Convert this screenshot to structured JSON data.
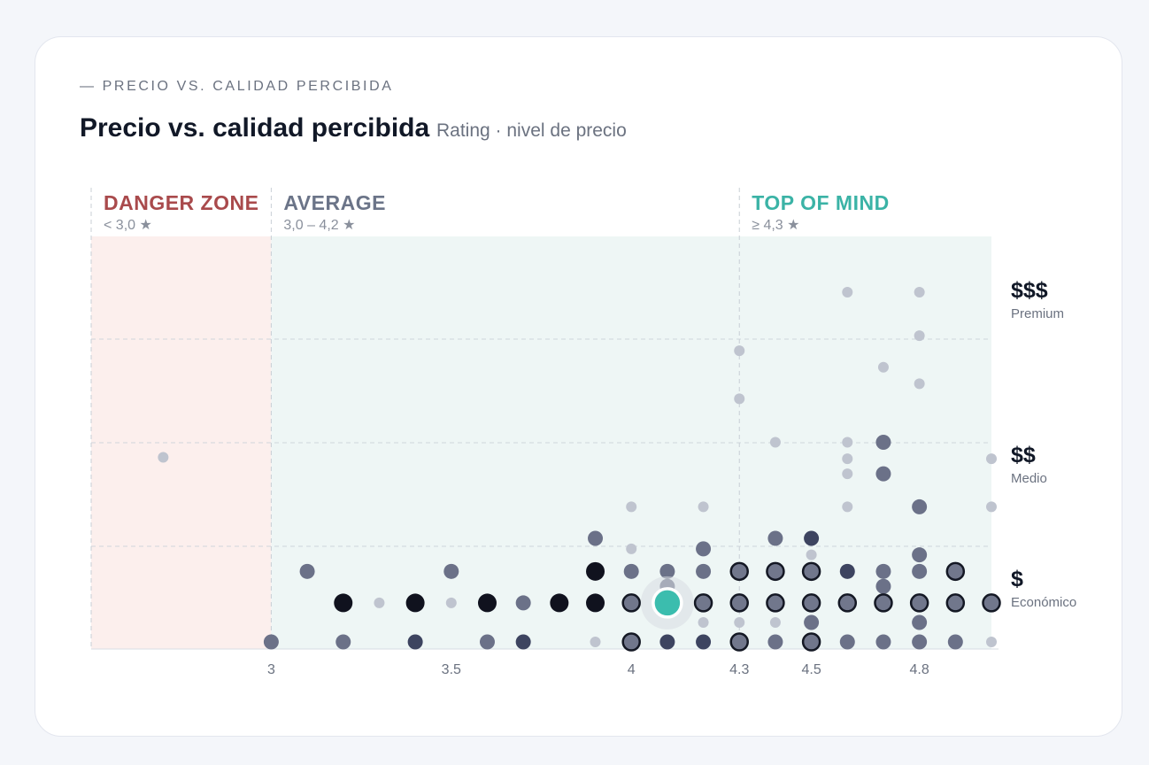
{
  "header": {
    "eyebrow": "— PRECIO VS. CALIDAD PERCIBIDA",
    "title": "Precio vs. calidad percibida",
    "subtitle": "Rating · nivel de precio"
  },
  "colors": {
    "danger": "#a94a4c",
    "average": "#6b7488",
    "top": "#3bb3a6",
    "highlight": "#3bbdae",
    "danger_bg": "#fcefed",
    "zone_bg": "#eef6f5"
  },
  "chart_data": {
    "type": "scatter",
    "title": "Precio vs. calidad percibida",
    "subtitle": "Rating · nivel de precio",
    "xlim": [
      2.5,
      5.0
    ],
    "x_ticks": [
      3,
      3.5,
      4,
      4.3,
      4.5,
      4.8
    ],
    "zones": [
      {
        "name": "DANGER ZONE",
        "range_label": "< 3,0 ★",
        "from": 2.5,
        "to": 3.0
      },
      {
        "name": "AVERAGE",
        "range_label": "3,0 – 4,2 ★",
        "from": 3.0,
        "to": 4.3
      },
      {
        "name": "TOP OF MIND",
        "range_label": "≥ 4,3 ★",
        "from": 4.3,
        "to": 5.0
      }
    ],
    "price_levels": [
      {
        "symbol": "$$$",
        "label": "Premium",
        "level": 3
      },
      {
        "symbol": "$$",
        "label": "Medio",
        "level": 2
      },
      {
        "symbol": "$",
        "label": "Económico",
        "level": 1
      }
    ],
    "ylim": [
      0.5,
      3.2
    ],
    "points": [
      {
        "x": 2.7,
        "y": 1.9,
        "t": "s"
      },
      {
        "x": 3.0,
        "y": 0.67,
        "t": "m"
      },
      {
        "x": 3.1,
        "y": 1.14,
        "t": "m"
      },
      {
        "x": 3.2,
        "y": 0.93,
        "t": "l"
      },
      {
        "x": 3.2,
        "y": 0.67,
        "t": "m"
      },
      {
        "x": 3.3,
        "y": 0.93,
        "t": "s"
      },
      {
        "x": 3.4,
        "y": 0.93,
        "t": "l"
      },
      {
        "x": 3.4,
        "y": 0.67,
        "t": "d"
      },
      {
        "x": 3.5,
        "y": 1.14,
        "t": "m"
      },
      {
        "x": 3.5,
        "y": 0.93,
        "t": "s"
      },
      {
        "x": 3.6,
        "y": 0.93,
        "t": "l"
      },
      {
        "x": 3.6,
        "y": 0.67,
        "t": "m"
      },
      {
        "x": 3.7,
        "y": 0.93,
        "t": "m"
      },
      {
        "x": 3.7,
        "y": 0.67,
        "t": "d"
      },
      {
        "x": 3.8,
        "y": 0.93,
        "t": "l"
      },
      {
        "x": 3.9,
        "y": 1.36,
        "t": "m"
      },
      {
        "x": 3.9,
        "y": 1.14,
        "t": "l"
      },
      {
        "x": 3.9,
        "y": 0.93,
        "t": "l"
      },
      {
        "x": 3.9,
        "y": 0.67,
        "t": "s"
      },
      {
        "x": 4.0,
        "y": 1.57,
        "t": "s"
      },
      {
        "x": 4.0,
        "y": 1.29,
        "t": "s"
      },
      {
        "x": 4.0,
        "y": 1.14,
        "t": "m"
      },
      {
        "x": 4.0,
        "y": 0.93,
        "t": "r"
      },
      {
        "x": 4.0,
        "y": 0.67,
        "t": "r"
      },
      {
        "x": 4.1,
        "y": 1.14,
        "t": "m"
      },
      {
        "x": 4.1,
        "y": 1.04,
        "t": "m"
      },
      {
        "x": 4.1,
        "y": 0.67,
        "t": "d"
      },
      {
        "x": 4.2,
        "y": 1.57,
        "t": "s"
      },
      {
        "x": 4.2,
        "y": 1.29,
        "t": "m"
      },
      {
        "x": 4.2,
        "y": 1.14,
        "t": "m"
      },
      {
        "x": 4.2,
        "y": 0.93,
        "t": "r"
      },
      {
        "x": 4.2,
        "y": 0.8,
        "t": "s"
      },
      {
        "x": 4.2,
        "y": 0.67,
        "t": "d"
      },
      {
        "x": 4.3,
        "y": 2.61,
        "t": "s"
      },
      {
        "x": 4.3,
        "y": 2.29,
        "t": "s"
      },
      {
        "x": 4.3,
        "y": 1.14,
        "t": "r"
      },
      {
        "x": 4.3,
        "y": 0.93,
        "t": "r"
      },
      {
        "x": 4.3,
        "y": 0.8,
        "t": "s"
      },
      {
        "x": 4.3,
        "y": 0.67,
        "t": "r"
      },
      {
        "x": 4.4,
        "y": 2.0,
        "t": "s"
      },
      {
        "x": 4.4,
        "y": 1.36,
        "t": "m"
      },
      {
        "x": 4.4,
        "y": 1.14,
        "t": "r"
      },
      {
        "x": 4.4,
        "y": 0.93,
        "t": "r"
      },
      {
        "x": 4.4,
        "y": 0.8,
        "t": "s"
      },
      {
        "x": 4.4,
        "y": 0.67,
        "t": "m"
      },
      {
        "x": 4.5,
        "y": 1.36,
        "t": "d"
      },
      {
        "x": 4.5,
        "y": 1.25,
        "t": "s"
      },
      {
        "x": 4.5,
        "y": 1.14,
        "t": "r"
      },
      {
        "x": 4.5,
        "y": 0.93,
        "t": "r"
      },
      {
        "x": 4.5,
        "y": 0.8,
        "t": "m"
      },
      {
        "x": 4.5,
        "y": 0.67,
        "t": "r"
      },
      {
        "x": 4.6,
        "y": 3.0,
        "t": "s"
      },
      {
        "x": 4.6,
        "y": 2.0,
        "t": "s"
      },
      {
        "x": 4.6,
        "y": 1.89,
        "t": "s"
      },
      {
        "x": 4.6,
        "y": 1.79,
        "t": "s"
      },
      {
        "x": 4.6,
        "y": 1.57,
        "t": "s"
      },
      {
        "x": 4.6,
        "y": 1.14,
        "t": "d"
      },
      {
        "x": 4.6,
        "y": 0.93,
        "t": "r"
      },
      {
        "x": 4.6,
        "y": 0.67,
        "t": "m"
      },
      {
        "x": 4.7,
        "y": 2.5,
        "t": "s"
      },
      {
        "x": 4.7,
        "y": 2.0,
        "t": "m"
      },
      {
        "x": 4.7,
        "y": 1.79,
        "t": "m"
      },
      {
        "x": 4.7,
        "y": 1.14,
        "t": "m"
      },
      {
        "x": 4.7,
        "y": 1.04,
        "t": "m"
      },
      {
        "x": 4.7,
        "y": 0.93,
        "t": "r"
      },
      {
        "x": 4.7,
        "y": 0.67,
        "t": "m"
      },
      {
        "x": 4.8,
        "y": 3.0,
        "t": "s"
      },
      {
        "x": 4.8,
        "y": 2.71,
        "t": "s"
      },
      {
        "x": 4.8,
        "y": 2.39,
        "t": "s"
      },
      {
        "x": 4.8,
        "y": 1.57,
        "t": "m"
      },
      {
        "x": 4.8,
        "y": 1.25,
        "t": "m"
      },
      {
        "x": 4.8,
        "y": 1.14,
        "t": "m"
      },
      {
        "x": 4.8,
        "y": 0.93,
        "t": "r"
      },
      {
        "x": 4.8,
        "y": 0.8,
        "t": "m"
      },
      {
        "x": 4.8,
        "y": 0.67,
        "t": "m"
      },
      {
        "x": 4.9,
        "y": 1.14,
        "t": "r"
      },
      {
        "x": 4.9,
        "y": 0.93,
        "t": "r"
      },
      {
        "x": 4.9,
        "y": 0.67,
        "t": "m"
      },
      {
        "x": 5.0,
        "y": 1.89,
        "t": "s"
      },
      {
        "x": 5.0,
        "y": 1.57,
        "t": "s"
      },
      {
        "x": 5.0,
        "y": 0.93,
        "t": "r"
      },
      {
        "x": 5.0,
        "y": 0.67,
        "t": "s"
      }
    ],
    "highlight": {
      "x": 4.1,
      "y": 0.93
    }
  }
}
